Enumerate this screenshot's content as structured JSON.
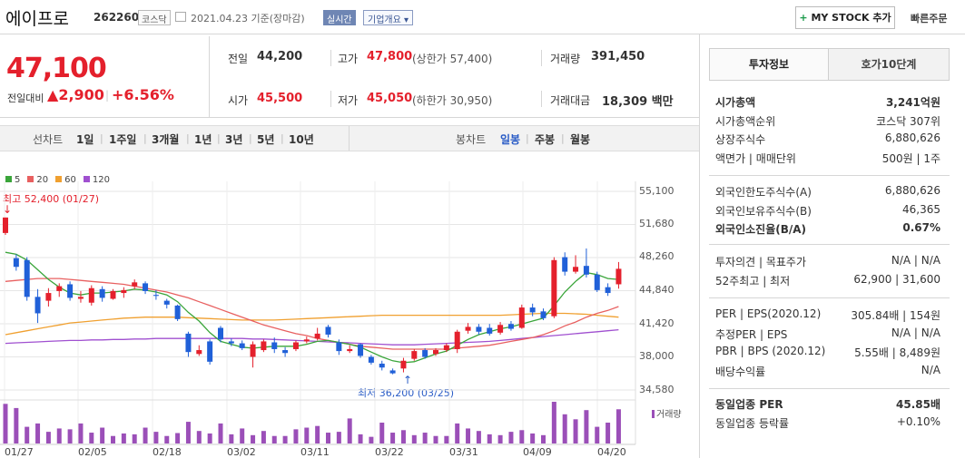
{
  "header": {
    "name": "에이프로",
    "code": "262260",
    "market": "코스닥",
    "date_text": "2021.04.23 기준(장마감)",
    "realtime": "실시간",
    "company_info": "기업개요",
    "my_stock": "MY STOCK 추가",
    "quick_order": "빠른주문"
  },
  "price": {
    "current": "47,100",
    "change_label": "전일대비",
    "change": "2,900",
    "change_pct": "+6.56%"
  },
  "summary": {
    "prev_label": "전일",
    "prev": "44,200",
    "high_label": "고가",
    "high": "47,800",
    "upper_limit": "(상한가 57,400)",
    "volume_label": "거래량",
    "volume": "391,450",
    "open_label": "시가",
    "open": "45,500",
    "low_label": "저가",
    "low": "45,050",
    "lower_limit": "(하한가 30,950)",
    "amount_label": "거래대금",
    "amount": "18,309",
    "amount_unit": "백만"
  },
  "toolbar": {
    "line_chart": "선차트",
    "periods": [
      "1일",
      "1주일",
      "3개월",
      "1년",
      "3년",
      "5년",
      "10년"
    ],
    "candle_chart": "봉차트",
    "candle_types": [
      "일봉",
      "주봉",
      "월봉"
    ],
    "selected": "일봉"
  },
  "chart": {
    "legend": [
      "5",
      "20",
      "60",
      "120"
    ],
    "colors": {
      "ma5": "#3aa53a",
      "ma20": "#e86060",
      "ma60": "#f0a030",
      "ma120": "#a050d0",
      "up": "#e4202c",
      "down": "#2060d8",
      "vol": "#9b4fb8"
    },
    "high_note": "최고 52,400 (01/27)",
    "low_note": "최저 36,200 (03/25)",
    "y_labels": [
      "55,100",
      "51,680",
      "48,260",
      "44,840",
      "41,420",
      "38,000",
      "34,580"
    ],
    "x_labels": [
      "01/27",
      "02/05",
      "02/18",
      "03/02",
      "03/11",
      "03/22",
      "03/31",
      "04/09",
      "04/20"
    ],
    "volume_label": "거래량"
  },
  "chart_data": {
    "type": "candlestick",
    "ylim": [
      34580,
      55100
    ],
    "candles": [
      {
        "o": 50800,
        "c": 52400,
        "h": 52400,
        "l": 50600
      },
      {
        "o": 48200,
        "c": 47300,
        "h": 48600,
        "l": 46900
      },
      {
        "o": 48000,
        "c": 44200,
        "h": 48300,
        "l": 43800
      },
      {
        "o": 44200,
        "c": 42500,
        "h": 45000,
        "l": 41500
      },
      {
        "o": 43800,
        "c": 44600,
        "h": 45100,
        "l": 43200
      },
      {
        "o": 44800,
        "c": 45300,
        "h": 45600,
        "l": 44200
      },
      {
        "o": 45500,
        "c": 44100,
        "h": 45800,
        "l": 43800
      },
      {
        "o": 44000,
        "c": 44200,
        "h": 44800,
        "l": 43600
      },
      {
        "o": 43600,
        "c": 45100,
        "h": 45400,
        "l": 43300
      },
      {
        "o": 45000,
        "c": 44100,
        "h": 45300,
        "l": 43700
      },
      {
        "o": 44000,
        "c": 44800,
        "h": 45000,
        "l": 43900
      },
      {
        "o": 44600,
        "c": 44900,
        "h": 45200,
        "l": 44100
      },
      {
        "o": 45300,
        "c": 45700,
        "h": 46000,
        "l": 45000
      },
      {
        "o": 45600,
        "c": 44800,
        "h": 45800,
        "l": 44500
      },
      {
        "o": 44400,
        "c": 44300,
        "h": 44900,
        "l": 43900
      },
      {
        "o": 43800,
        "c": 43400,
        "h": 44000,
        "l": 43000
      },
      {
        "o": 43300,
        "c": 41900,
        "h": 43400,
        "l": 41700
      },
      {
        "o": 40400,
        "c": 38500,
        "h": 40600,
        "l": 38000
      },
      {
        "o": 38300,
        "c": 38700,
        "h": 39200,
        "l": 38100
      },
      {
        "o": 39600,
        "c": 37500,
        "h": 39800,
        "l": 37200
      },
      {
        "o": 41000,
        "c": 39800,
        "h": 41200,
        "l": 39500
      },
      {
        "o": 39600,
        "c": 39400,
        "h": 39900,
        "l": 39100
      },
      {
        "o": 39400,
        "c": 38900,
        "h": 39700,
        "l": 38700
      },
      {
        "o": 38000,
        "c": 39300,
        "h": 39600,
        "l": 36900
      },
      {
        "o": 38700,
        "c": 39600,
        "h": 39800,
        "l": 38500
      },
      {
        "o": 39500,
        "c": 38800,
        "h": 40000,
        "l": 38400
      },
      {
        "o": 38700,
        "c": 38400,
        "h": 39000,
        "l": 38000
      },
      {
        "o": 38800,
        "c": 39500,
        "h": 39700,
        "l": 38600
      },
      {
        "o": 39600,
        "c": 39800,
        "h": 40100,
        "l": 39400
      },
      {
        "o": 39900,
        "c": 40400,
        "h": 41000,
        "l": 39700
      },
      {
        "o": 41100,
        "c": 40300,
        "h": 41300,
        "l": 40000
      },
      {
        "o": 39500,
        "c": 38600,
        "h": 39800,
        "l": 38200
      },
      {
        "o": 38600,
        "c": 38800,
        "h": 39200,
        "l": 38400
      },
      {
        "o": 39300,
        "c": 38100,
        "h": 39400,
        "l": 37900
      },
      {
        "o": 38000,
        "c": 37400,
        "h": 38200,
        "l": 37200
      },
      {
        "o": 37300,
        "c": 36900,
        "h": 37600,
        "l": 36600
      },
      {
        "o": 36600,
        "c": 36300,
        "h": 36800,
        "l": 36200
      },
      {
        "o": 36800,
        "c": 37600,
        "h": 37900,
        "l": 36400
      },
      {
        "o": 37800,
        "c": 38600,
        "h": 38800,
        "l": 37600
      },
      {
        "o": 38700,
        "c": 38000,
        "h": 38900,
        "l": 37800
      },
      {
        "o": 38300,
        "c": 38700,
        "h": 38900,
        "l": 38100
      },
      {
        "o": 38700,
        "c": 39200,
        "h": 39400,
        "l": 38500
      },
      {
        "o": 38800,
        "c": 40600,
        "h": 40800,
        "l": 38400
      },
      {
        "o": 40700,
        "c": 41100,
        "h": 41500,
        "l": 40400
      },
      {
        "o": 41100,
        "c": 40600,
        "h": 41400,
        "l": 40300
      },
      {
        "o": 41000,
        "c": 40400,
        "h": 41400,
        "l": 40200
      },
      {
        "o": 40500,
        "c": 41300,
        "h": 41600,
        "l": 40300
      },
      {
        "o": 41400,
        "c": 40900,
        "h": 41700,
        "l": 40700
      },
      {
        "o": 41000,
        "c": 43100,
        "h": 43400,
        "l": 40900
      },
      {
        "o": 43100,
        "c": 42600,
        "h": 43500,
        "l": 42200
      },
      {
        "o": 42700,
        "c": 42000,
        "h": 43000,
        "l": 41800
      },
      {
        "o": 42200,
        "c": 48000,
        "h": 48300,
        "l": 42000
      },
      {
        "o": 48300,
        "c": 46800,
        "h": 48800,
        "l": 46400
      },
      {
        "o": 46800,
        "c": 47300,
        "h": 48500,
        "l": 46600
      },
      {
        "o": 47400,
        "c": 46500,
        "h": 49200,
        "l": 46200
      },
      {
        "o": 46500,
        "c": 44900,
        "h": 46800,
        "l": 44700
      },
      {
        "o": 45200,
        "c": 44600,
        "h": 45600,
        "l": 44300
      },
      {
        "o": 45500,
        "c": 47100,
        "h": 47800,
        "l": 45050
      }
    ],
    "ma5": [
      48800,
      48600,
      48000,
      47000,
      46000,
      45200,
      44600,
      44400,
      44600,
      44600,
      44700,
      44800,
      45000,
      44900,
      44700,
      44400,
      43700,
      42600,
      41700,
      40500,
      39600,
      39300,
      39000,
      38900,
      39000,
      39100,
      39100,
      39100,
      39300,
      39600,
      39700,
      39500,
      39300,
      39000,
      38500,
      38000,
      37600,
      37400,
      37500,
      37900,
      38300,
      38600,
      39200,
      39800,
      40300,
      40600,
      40900,
      41100,
      41400,
      41700,
      42000,
      43300,
      44700,
      45800,
      46700,
      46500,
      46100,
      46000
    ],
    "ma20": [
      45800,
      45900,
      46000,
      46100,
      46100,
      46100,
      46000,
      45900,
      45800,
      45700,
      45600,
      45500,
      45300,
      45100,
      44900,
      44700,
      44400,
      44100,
      43700,
      43300,
      42900,
      42500,
      42100,
      41700,
      41300,
      41000,
      40700,
      40400,
      40200,
      39900,
      39700,
      39500,
      39300,
      39100,
      39000,
      38900,
      38800,
      38800,
      38800,
      38800,
      38800,
      38800,
      38900,
      39000,
      39100,
      39200,
      39400,
      39600,
      39800,
      40000,
      40300,
      40700,
      41200,
      41600,
      42100,
      42500,
      42800,
      43200
    ],
    "ma60": [
      40300,
      40500,
      40700,
      40900,
      41100,
      41300,
      41500,
      41600,
      41700,
      41800,
      41900,
      42000,
      42050,
      42100,
      42100,
      42100,
      42100,
      42050,
      42000,
      41950,
      41900,
      41850,
      41800,
      41800,
      41800,
      41800,
      41850,
      41900,
      41950,
      42000,
      42050,
      42100,
      42150,
      42200,
      42250,
      42300,
      42300,
      42300,
      42300,
      42300,
      42300,
      42300,
      42300,
      42300,
      42300,
      42300,
      42300,
      42350,
      42400,
      42450,
      42500,
      42500,
      42500,
      42450,
      42400,
      42300,
      42200,
      42100
    ],
    "ma120": [
      39400,
      39450,
      39500,
      39550,
      39600,
      39650,
      39700,
      39700,
      39750,
      39750,
      39800,
      39800,
      39850,
      39850,
      39900,
      39900,
      39900,
      39900,
      39900,
      39900,
      39900,
      39900,
      39900,
      39850,
      39850,
      39800,
      39750,
      39700,
      39650,
      39600,
      39550,
      39500,
      39450,
      39400,
      39350,
      39300,
      39250,
      39250,
      39250,
      39300,
      39350,
      39400,
      39450,
      39500,
      39550,
      39600,
      39700,
      39800,
      39900,
      40000,
      40100,
      40200,
      40300,
      40400,
      40500,
      40600,
      40700,
      40800
    ],
    "volume": [
      95,
      85,
      40,
      48,
      28,
      36,
      34,
      48,
      26,
      38,
      18,
      24,
      22,
      38,
      28,
      18,
      25,
      52,
      30,
      24,
      48,
      22,
      36,
      20,
      30,
      18,
      18,
      34,
      38,
      42,
      26,
      28,
      60,
      22,
      16,
      50,
      26,
      32,
      20,
      26,
      18,
      18,
      48,
      36,
      30,
      22,
      20,
      28,
      32,
      24,
      20,
      100,
      70,
      58,
      80,
      40,
      50,
      82
    ]
  },
  "side": {
    "tab_invest": "투자정보",
    "tab_order": "호가10단계",
    "rows1": [
      {
        "k": "시가총액",
        "v": "3,241억원",
        "bold": true
      },
      {
        "k": "시가총액순위",
        "v": "코스닥 307위"
      },
      {
        "k": "상장주식수",
        "v": "6,880,626"
      },
      {
        "k": "액면가 | 매매단위",
        "v": "500원 | 1주"
      }
    ],
    "rows2": [
      {
        "k": "외국인한도주식수(A)",
        "v": "6,880,626"
      },
      {
        "k": "외국인보유주식수(B)",
        "v": "46,365"
      },
      {
        "k": "외국인소진율(B/A)",
        "v": "0.67%",
        "bold": true
      }
    ],
    "rows3": [
      {
        "k": "투자의견 | 목표주가",
        "v": "N/A | N/A"
      },
      {
        "k": "52주최고 | 최저",
        "v": "62,900 | 31,600"
      }
    ],
    "rows4": [
      {
        "k": "PER | EPS(2020.12)",
        "v": "305.84배 | 154원"
      },
      {
        "k": "추정PER | EPS",
        "v": "N/A | N/A"
      },
      {
        "k": "PBR | BPS (2020.12)",
        "v": "5.55배 | 8,489원"
      },
      {
        "k": "배당수익률",
        "v": "N/A"
      }
    ],
    "rows5": [
      {
        "k": "동일업종 PER",
        "v": "45.85배",
        "bold": true
      },
      {
        "k": "동일업종 등락률",
        "v": "+0.10%",
        "red": true
      }
    ]
  }
}
